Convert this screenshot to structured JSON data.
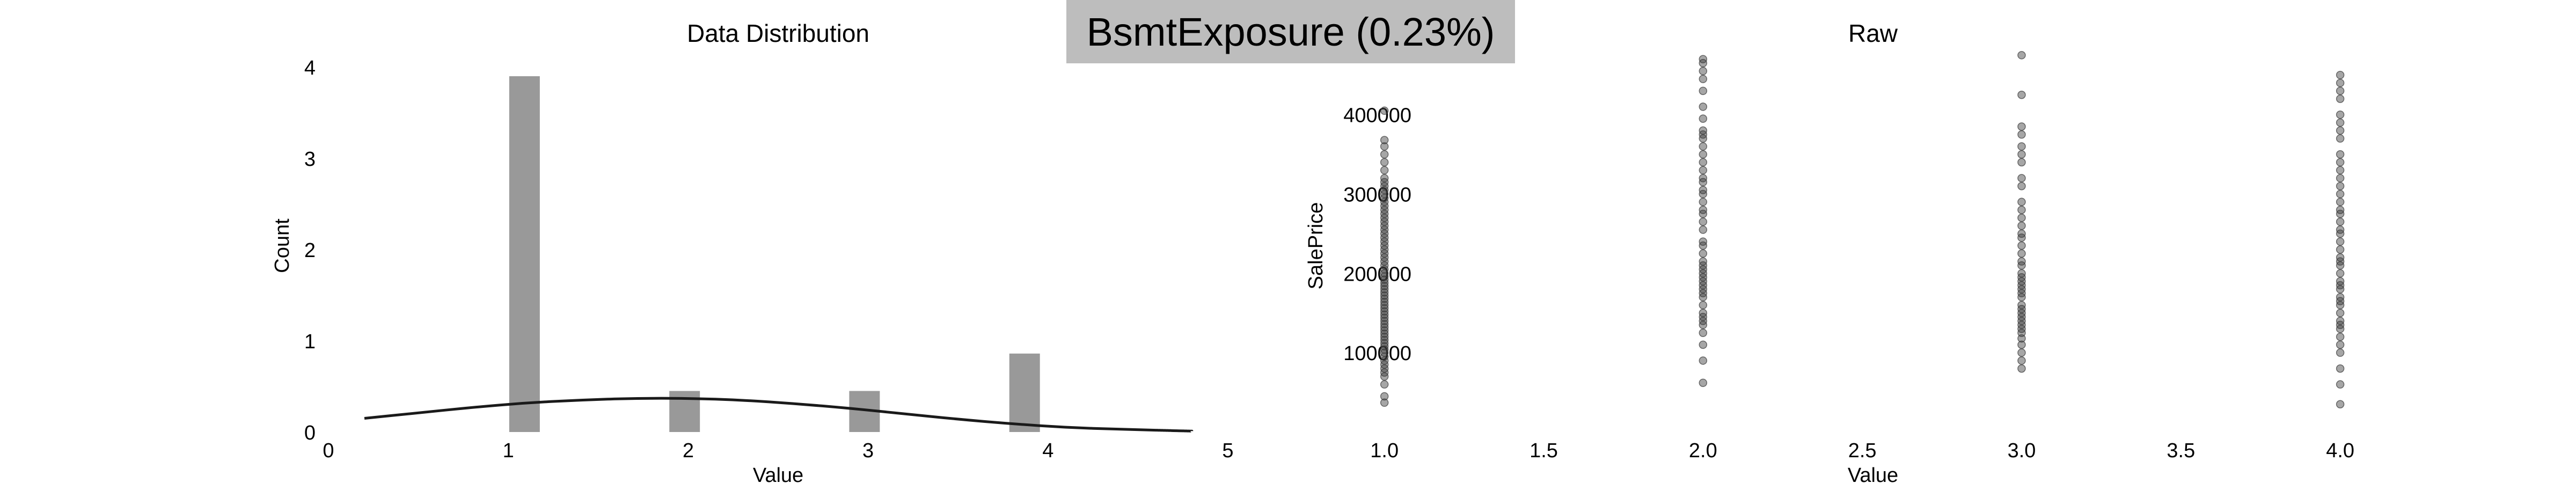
{
  "figure_title": "BsmtExposure (0.23%)",
  "chart_data": [
    {
      "type": "bar",
      "title": "Data Distribution",
      "xlabel": "Value",
      "ylabel": "Count",
      "xlim": [
        0,
        5
      ],
      "ylim": [
        0,
        4
      ],
      "xticks": [
        "0",
        "1",
        "2",
        "3",
        "4",
        "5"
      ],
      "yticks": [
        "0",
        "1",
        "2",
        "3",
        "4"
      ],
      "bars": [
        {
          "x": 1.09,
          "value": 3.9
        },
        {
          "x": 1.98,
          "value": 0.45
        },
        {
          "x": 2.98,
          "value": 0.45
        },
        {
          "x": 3.87,
          "value": 0.86
        }
      ],
      "bar_width": 0.17,
      "kde": {
        "x": [
          0.2,
          0.5,
          0.8,
          1.1,
          1.4,
          1.7,
          2.0,
          2.3,
          2.6,
          2.9,
          3.2,
          3.5,
          3.8,
          4.1,
          4.4,
          4.8
        ],
        "y": [
          0.15,
          0.21,
          0.27,
          0.32,
          0.35,
          0.37,
          0.37,
          0.35,
          0.31,
          0.26,
          0.2,
          0.14,
          0.09,
          0.05,
          0.03,
          0.01
        ]
      },
      "bar_color": "#999999",
      "line_color": "#1a1a1a",
      "grid": false
    },
    {
      "type": "scatter",
      "title": "Raw",
      "xlabel": "Value",
      "ylabel": "SalePrice",
      "xlim": [
        0.95,
        4.1
      ],
      "ylim": [
        0,
        460000
      ],
      "xticks": [
        1.0,
        1.5,
        2.0,
        2.5,
        3.0,
        3.5,
        4.0
      ],
      "xtick_labels": [
        "1.0",
        "1.5",
        "2.0",
        "2.5",
        "3.0",
        "3.5",
        "4.0"
      ],
      "yticks": [
        100000,
        200000,
        300000,
        400000
      ],
      "ytick_labels": [
        "100000",
        "200000",
        "300000",
        "400000"
      ],
      "marker_color": "#3a3a3a",
      "grid": false,
      "groups": [
        {
          "x": 1.0,
          "points": [
            37000,
            45000,
            60000,
            70000,
            75000,
            80000,
            85000,
            90000,
            95000,
            100000,
            104000,
            108000,
            112000,
            116000,
            120000,
            124000,
            128000,
            132000,
            136000,
            140000,
            144000,
            148000,
            152000,
            156000,
            160000,
            164000,
            168000,
            172000,
            176000,
            180000,
            184000,
            188000,
            192000,
            196000,
            200000,
            205000,
            210000,
            215000,
            220000,
            225000,
            230000,
            235000,
            240000,
            245000,
            250000,
            255000,
            260000,
            265000,
            270000,
            275000,
            280000,
            285000,
            290000,
            295000,
            300000,
            305000,
            310000,
            315000,
            320000,
            330000,
            340000,
            350000,
            360000,
            368000,
            405000
          ]
        },
        {
          "x": 2.0,
          "points": [
            62000,
            90000,
            110000,
            125000,
            135000,
            140000,
            145000,
            150000,
            160000,
            170000,
            175000,
            180000,
            185000,
            190000,
            195000,
            200000,
            205000,
            210000,
            215000,
            225000,
            235000,
            240000,
            255000,
            265000,
            275000,
            280000,
            290000,
            300000,
            305000,
            315000,
            320000,
            330000,
            340000,
            350000,
            360000,
            370000,
            375000,
            380000,
            395000,
            410000,
            430000,
            445000,
            455000,
            465000,
            470000
          ]
        },
        {
          "x": 3.0,
          "points": [
            80000,
            90000,
            100000,
            110000,
            118000,
            125000,
            130000,
            135000,
            140000,
            145000,
            150000,
            155000,
            160000,
            170000,
            175000,
            180000,
            185000,
            190000,
            195000,
            200000,
            210000,
            215000,
            225000,
            235000,
            245000,
            250000,
            260000,
            270000,
            280000,
            290000,
            310000,
            320000,
            340000,
            350000,
            360000,
            375000,
            385000,
            425000,
            475000
          ]
        },
        {
          "x": 4.0,
          "points": [
            35000,
            60000,
            80000,
            100000,
            110000,
            120000,
            130000,
            135000,
            140000,
            150000,
            160000,
            165000,
            170000,
            180000,
            185000,
            190000,
            200000,
            210000,
            215000,
            220000,
            230000,
            240000,
            250000,
            255000,
            265000,
            275000,
            280000,
            290000,
            300000,
            310000,
            320000,
            330000,
            340000,
            350000,
            370000,
            380000,
            390000,
            400000,
            420000,
            430000,
            440000,
            450000
          ]
        }
      ]
    }
  ]
}
